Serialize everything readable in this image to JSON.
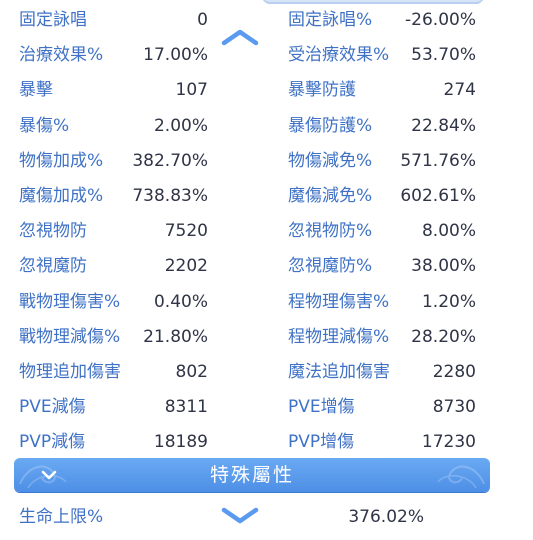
{
  "stats": [
    {
      "left_label": "固定詠唱",
      "left_value": "0",
      "right_label": "固定詠唱%",
      "right_value": "-26.00%"
    },
    {
      "left_label": "治療效果%",
      "left_value": "17.00%",
      "right_label": "受治療效果%",
      "right_value": "53.70%"
    },
    {
      "left_label": "暴擊",
      "left_value": "107",
      "right_label": "暴擊防護",
      "right_value": "274"
    },
    {
      "left_label": "暴傷%",
      "left_value": "2.00%",
      "right_label": "暴傷防護%",
      "right_value": "22.84%"
    },
    {
      "left_label": "物傷加成%",
      "left_value": "382.70%",
      "right_label": "物傷減免%",
      "right_value": "571.76%"
    },
    {
      "left_label": "魔傷加成%",
      "left_value": "738.83%",
      "right_label": "魔傷減免%",
      "right_value": "602.61%"
    },
    {
      "left_label": "忽視物防",
      "left_value": "7520",
      "right_label": "忽視物防%",
      "right_value": "8.00%"
    },
    {
      "left_label": "忽視魔防",
      "left_value": "2202",
      "right_label": "忽視魔防%",
      "right_value": "38.00%"
    },
    {
      "left_label": "戰物理傷害%",
      "left_value": "0.40%",
      "right_label": "程物理傷害%",
      "right_value": "1.20%"
    },
    {
      "left_label": "戰物理減傷%",
      "left_value": "21.80%",
      "right_label": "程物理減傷%",
      "right_value": "28.20%"
    },
    {
      "left_label": "物理追加傷害",
      "left_value": "802",
      "right_label": "魔法追加傷害",
      "right_value": "2280"
    },
    {
      "left_label": "PVE減傷",
      "left_value": "8311",
      "right_label": "PVE增傷",
      "right_value": "8730"
    },
    {
      "left_label": "PVP減傷",
      "left_value": "18189",
      "right_label": "PVP增傷",
      "right_value": "17230"
    }
  ],
  "section": {
    "title": "特殊屬性"
  },
  "special": {
    "label": "生命上限%",
    "value": "376.02%"
  },
  "icons": {
    "scroll_up": "chevron-up-icon",
    "scroll_down": "chevron-down-icon",
    "section_toggle": "chevron-down-icon"
  },
  "colors": {
    "label": "#3f72c6",
    "value": "#2f3446",
    "section_bar": "#5b9bef",
    "section_text": "#ffffff"
  }
}
